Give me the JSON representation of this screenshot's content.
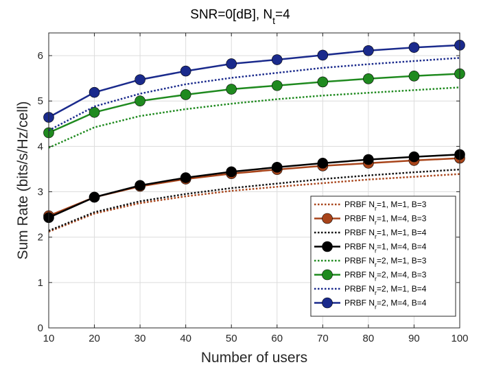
{
  "chart_data": {
    "type": "line",
    "title_parts": [
      "SNR=0[dB], N",
      "t",
      "=4"
    ],
    "xlabel": "Number of users",
    "ylabel": "Sum Rate (bits/s/Hz/cell)",
    "x": [
      10,
      20,
      30,
      40,
      50,
      60,
      70,
      80,
      90,
      100
    ],
    "xlim": [
      10,
      100
    ],
    "ylim": [
      0,
      6.5
    ],
    "xticks": [
      "10",
      "20",
      "30",
      "40",
      "50",
      "60",
      "70",
      "80",
      "90",
      "100"
    ],
    "yticks": [
      "0",
      "1",
      "2",
      "3",
      "4",
      "5",
      "6"
    ],
    "grid": true,
    "legend_position": "lower-right",
    "series": [
      {
        "name_parts": [
          "PRBF N",
          "r",
          "=1, M=1, B=3"
        ],
        "color": "#a8441a",
        "style": "dotted",
        "marker": false,
        "values": [
          2.12,
          2.52,
          2.75,
          2.9,
          3.02,
          3.11,
          3.19,
          3.27,
          3.33,
          3.39
        ]
      },
      {
        "name_parts": [
          "PRBF N",
          "r",
          "=1, M=4, B=3"
        ],
        "color": "#a8441a",
        "style": "solid",
        "marker": true,
        "values": [
          2.47,
          2.88,
          3.12,
          3.28,
          3.4,
          3.49,
          3.57,
          3.63,
          3.69,
          3.74
        ]
      },
      {
        "name_parts": [
          "PRBF N",
          "r",
          "=1, M=1, B=4"
        ],
        "color": "#111111",
        "style": "dotted",
        "marker": false,
        "values": [
          2.14,
          2.55,
          2.79,
          2.95,
          3.08,
          3.18,
          3.28,
          3.36,
          3.43,
          3.49
        ]
      },
      {
        "name_parts": [
          "PRBF N",
          "r",
          "=1, M=4, B=4"
        ],
        "color": "#000000",
        "style": "solid",
        "marker": true,
        "values": [
          2.43,
          2.88,
          3.14,
          3.31,
          3.44,
          3.54,
          3.63,
          3.71,
          3.77,
          3.82
        ]
      },
      {
        "name_parts": [
          "PRBF N",
          "r",
          "=2, M=1, B=3"
        ],
        "color": "#1f8a1f",
        "style": "dotted",
        "marker": false,
        "values": [
          3.97,
          4.42,
          4.67,
          4.82,
          4.94,
          5.04,
          5.12,
          5.18,
          5.24,
          5.3
        ]
      },
      {
        "name_parts": [
          "PRBF N",
          "r",
          "=2, M=4, B=3"
        ],
        "color": "#1f8a1f",
        "style": "solid",
        "marker": true,
        "values": [
          4.3,
          4.75,
          5.0,
          5.14,
          5.26,
          5.34,
          5.42,
          5.49,
          5.55,
          5.6
        ]
      },
      {
        "name_parts": [
          "PRBF N",
          "r",
          "=2, M=1, B=4"
        ],
        "color": "#1a2a8c",
        "style": "dotted",
        "marker": false,
        "values": [
          4.35,
          4.88,
          5.16,
          5.37,
          5.51,
          5.62,
          5.73,
          5.81,
          5.88,
          5.95
        ]
      },
      {
        "name_parts": [
          "PRBF N",
          "r",
          "=2, M=4, B=4"
        ],
        "color": "#1a2a8c",
        "style": "solid",
        "marker": true,
        "values": [
          4.64,
          5.19,
          5.47,
          5.66,
          5.82,
          5.91,
          6.01,
          6.11,
          6.18,
          6.23
        ]
      }
    ]
  }
}
